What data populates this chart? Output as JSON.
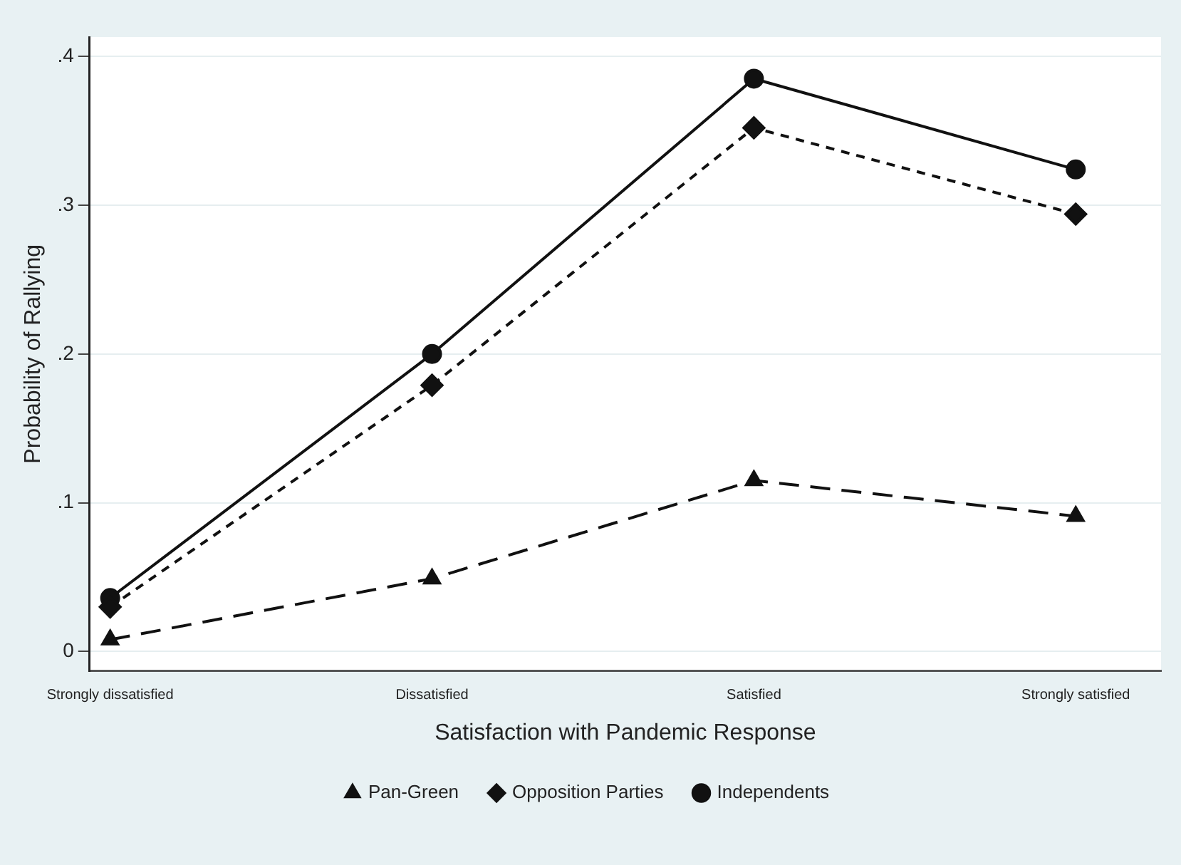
{
  "chart_data": {
    "type": "line",
    "xlabel": "Satisfaction with Pandemic Response",
    "ylabel": "Probability of Rallying",
    "categories": [
      "Strongly dissatisfied",
      "Dissatisfied",
      "Satisfied",
      "Strongly satisfied"
    ],
    "series": [
      {
        "name": "Pan-Green",
        "color": "#111111",
        "marker": "triangle",
        "line_style": "dashed",
        "values": [
          0.008,
          0.049,
          0.115,
          0.091
        ]
      },
      {
        "name": "Opposition Parties",
        "color": "#111111",
        "marker": "diamond",
        "line_style": "dashed",
        "values": [
          0.03,
          0.179,
          0.352,
          0.294
        ]
      },
      {
        "name": "Independents",
        "color": "#111111",
        "marker": "circle",
        "line_style": "solid",
        "values": [
          0.036,
          0.2,
          0.385,
          0.324
        ]
      }
    ],
    "ylim": [
      -0.013,
      0.413
    ],
    "yticks": [
      0,
      {
        "value": 0.1,
        "label": ".1"
      },
      {
        "value": 0.2,
        "label": ".2"
      },
      {
        "value": 0.3,
        "label": ".3"
      },
      {
        "value": 0.4,
        "label": ".4"
      }
    ],
    "grid": "y",
    "legend": "bottom"
  }
}
